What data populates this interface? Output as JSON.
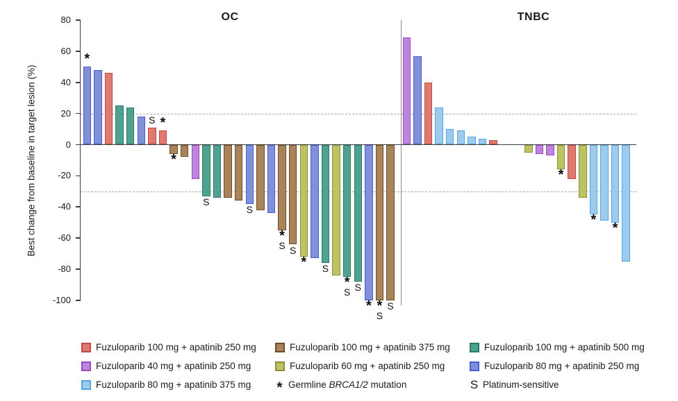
{
  "chart_data": {
    "type": "bar",
    "subtype": "waterfall",
    "ylabel": "Best change from baseline in target lesion (%)",
    "ylim": [
      -100,
      80
    ],
    "yticks": [
      80,
      60,
      40,
      20,
      0,
      -20,
      -40,
      -60,
      -80,
      -100
    ],
    "reference_lines": [
      20,
      -30
    ],
    "grid": "off",
    "legend_position": "bottom",
    "mark_meanings": {
      "*": "Germline BRCA1/2 mutation",
      "S": "Platinum-sensitive"
    },
    "colors": {
      "red": {
        "fill": "#DE7A70",
        "edge": "#C14742"
      },
      "brown": {
        "fill": "#A8835B",
        "edge": "#6F4E22"
      },
      "teal": {
        "fill": "#4EA28F",
        "edge": "#2E7A6A"
      },
      "orchid": {
        "fill": "#BD86DD",
        "edge": "#9A49C2"
      },
      "olive": {
        "fill": "#BDC364",
        "edge": "#8B9130"
      },
      "slate_blue": {
        "fill": "#8091D8",
        "edge": "#4A5BD8"
      },
      "light_blue": {
        "fill": "#9CCBEE",
        "edge": "#56A3DF"
      }
    },
    "groups": [
      {
        "name": "OC",
        "bars": [
          {
            "value": 50,
            "color": "slate_blue",
            "mark": "*"
          },
          {
            "value": 48,
            "color": "slate_blue",
            "mark": ""
          },
          {
            "value": 46,
            "color": "red",
            "mark": ""
          },
          {
            "value": 25,
            "color": "teal",
            "mark": ""
          },
          {
            "value": 24,
            "color": "teal",
            "mark": ""
          },
          {
            "value": 18,
            "color": "slate_blue",
            "mark": ""
          },
          {
            "value": 11,
            "color": "red",
            "mark": "S"
          },
          {
            "value": 9,
            "color": "red",
            "mark": "*"
          },
          {
            "value": -6,
            "color": "brown",
            "mark": "*"
          },
          {
            "value": -8,
            "color": "brown",
            "mark": ""
          },
          {
            "value": -22,
            "color": "orchid",
            "mark": ""
          },
          {
            "value": -33,
            "color": "teal",
            "mark": "S"
          },
          {
            "value": -34,
            "color": "teal",
            "mark": ""
          },
          {
            "value": -34,
            "color": "brown",
            "mark": ""
          },
          {
            "value": -36,
            "color": "brown",
            "mark": ""
          },
          {
            "value": -38,
            "color": "slate_blue",
            "mark": "S"
          },
          {
            "value": -42,
            "color": "brown",
            "mark": ""
          },
          {
            "value": -44,
            "color": "slate_blue",
            "mark": ""
          },
          {
            "value": -55,
            "color": "brown",
            "mark": "*S"
          },
          {
            "value": -64,
            "color": "brown",
            "mark": "S"
          },
          {
            "value": -72,
            "color": "olive",
            "mark": "*"
          },
          {
            "value": -73,
            "color": "slate_blue",
            "mark": ""
          },
          {
            "value": -76,
            "color": "teal",
            "mark": "S"
          },
          {
            "value": -84,
            "color": "olive",
            "mark": ""
          },
          {
            "value": -85,
            "color": "teal",
            "mark": "*S"
          },
          {
            "value": -88,
            "color": "teal",
            "mark": "S"
          },
          {
            "value": -100,
            "color": "slate_blue",
            "mark": "*"
          },
          {
            "value": -100,
            "color": "brown",
            "mark": "*S"
          },
          {
            "value": -100,
            "color": "brown",
            "mark": "S"
          }
        ]
      },
      {
        "name": "TNBC",
        "bars": [
          {
            "value": 69,
            "color": "orchid",
            "mark": ""
          },
          {
            "value": 57,
            "color": "slate_blue",
            "mark": ""
          },
          {
            "value": 40,
            "color": "red",
            "mark": ""
          },
          {
            "value": 24,
            "color": "light_blue",
            "mark": ""
          },
          {
            "value": 10,
            "color": "light_blue",
            "mark": ""
          },
          {
            "value": 9,
            "color": "light_blue",
            "mark": ""
          },
          {
            "value": 5,
            "color": "light_blue",
            "mark": ""
          },
          {
            "value": 4,
            "color": "light_blue",
            "mark": ""
          },
          {
            "value": 3,
            "color": "red",
            "mark": ""
          },
          {
            "value": -5,
            "color": "olive",
            "mark": ""
          },
          {
            "value": -6,
            "color": "orchid",
            "mark": ""
          },
          {
            "value": -7,
            "color": "orchid",
            "mark": ""
          },
          {
            "value": -16,
            "color": "olive",
            "mark": "*"
          },
          {
            "value": -22,
            "color": "red",
            "mark": ""
          },
          {
            "value": -34,
            "color": "olive",
            "mark": ""
          },
          {
            "value": -45,
            "color": "light_blue",
            "mark": "*"
          },
          {
            "value": -49,
            "color": "light_blue",
            "mark": ""
          },
          {
            "value": -50,
            "color": "light_blue",
            "mark": "*"
          },
          {
            "value": -75,
            "color": "light_blue",
            "mark": ""
          }
        ]
      }
    ],
    "legend": [
      {
        "swatch": "red",
        "label": "Fuzuloparib 100 mg + apatinib 250 mg"
      },
      {
        "swatch": "brown",
        "label": "Fuzuloparib 100 mg + apatinib 375 mg"
      },
      {
        "swatch": "teal",
        "label": "Fuzuloparib 100 mg + apatinib 500 mg"
      },
      {
        "swatch": "orchid",
        "label": "Fuzuloparib 40 mg + apatinib 250 mg"
      },
      {
        "swatch": "olive",
        "label": "Fuzuloparib 60 mg + apatinib 250 mg"
      },
      {
        "swatch": "slate_blue",
        "label": "Fuzuloparib 80 mg + apatinib 250 mg"
      },
      {
        "swatch": "light_blue",
        "label": "Fuzuloparib 80 mg + apatinib 375 mg"
      },
      {
        "symbol": "*",
        "label_pre": "Germline ",
        "label_italic": "BRCA1/2",
        "label_post": " mutation"
      },
      {
        "symbol": "S",
        "label": "Platinum-sensitive"
      }
    ]
  }
}
